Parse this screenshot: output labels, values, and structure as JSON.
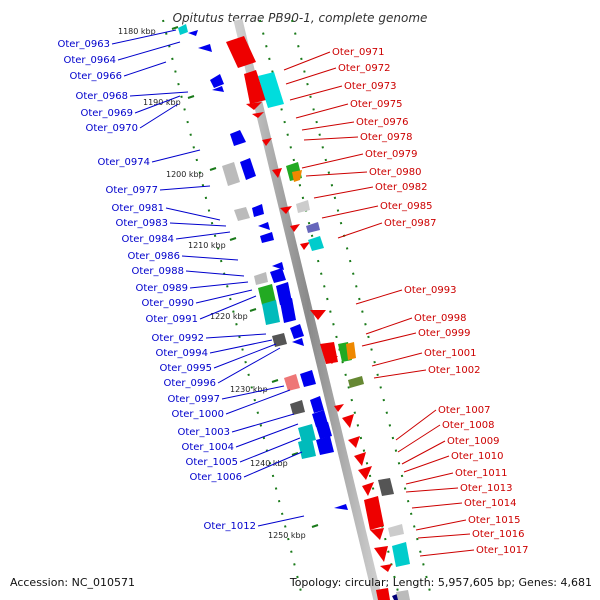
{
  "title": "Opitutus terrae PB90-1, complete genome",
  "accession": "Accession: NC_010571",
  "summary": "Topology: circular; Length: 5,957,605 bp; Genes: 4,681",
  "colors": {
    "left_labels": "#0000cc",
    "right_labels": "#cc0000",
    "backbone": "#999999",
    "ticks": "#1a7a1a"
  },
  "scale_ticks": [
    "1180 kbp",
    "1190 kbp",
    "1200 kbp",
    "1210 kbp",
    "1220 kbp",
    "1230 kbp",
    "1240 kbp",
    "1250 kbp"
  ],
  "left_labels": [
    "Oter_0963",
    "Oter_0964",
    "Oter_0966",
    "Oter_0968",
    "Oter_0969",
    "Oter_0970",
    "Oter_0974",
    "Oter_0977",
    "Oter_0981",
    "Oter_0983",
    "Oter_0984",
    "Oter_0986",
    "Oter_0988",
    "Oter_0989",
    "Oter_0990",
    "Oter_0991",
    "Oter_0992",
    "Oter_0994",
    "Oter_0995",
    "Oter_0996",
    "Oter_0997",
    "Oter_1000",
    "Oter_1003",
    "Oter_1004",
    "Oter_1005",
    "Oter_1006",
    "Oter_1012"
  ],
  "right_labels": [
    "Oter_0971",
    "Oter_0972",
    "Oter_0973",
    "Oter_0975",
    "Oter_0976",
    "Oter_0978",
    "Oter_0979",
    "Oter_0980",
    "Oter_0982",
    "Oter_0985",
    "Oter_0987",
    "Oter_0993",
    "Oter_0998",
    "Oter_0999",
    "Oter_1001",
    "Oter_1002",
    "Oter_1007",
    "Oter_1008",
    "Oter_1009",
    "Oter_1010",
    "Oter_1011",
    "Oter_1013",
    "Oter_1014",
    "Oter_1015",
    "Oter_1016",
    "Oter_1017"
  ]
}
